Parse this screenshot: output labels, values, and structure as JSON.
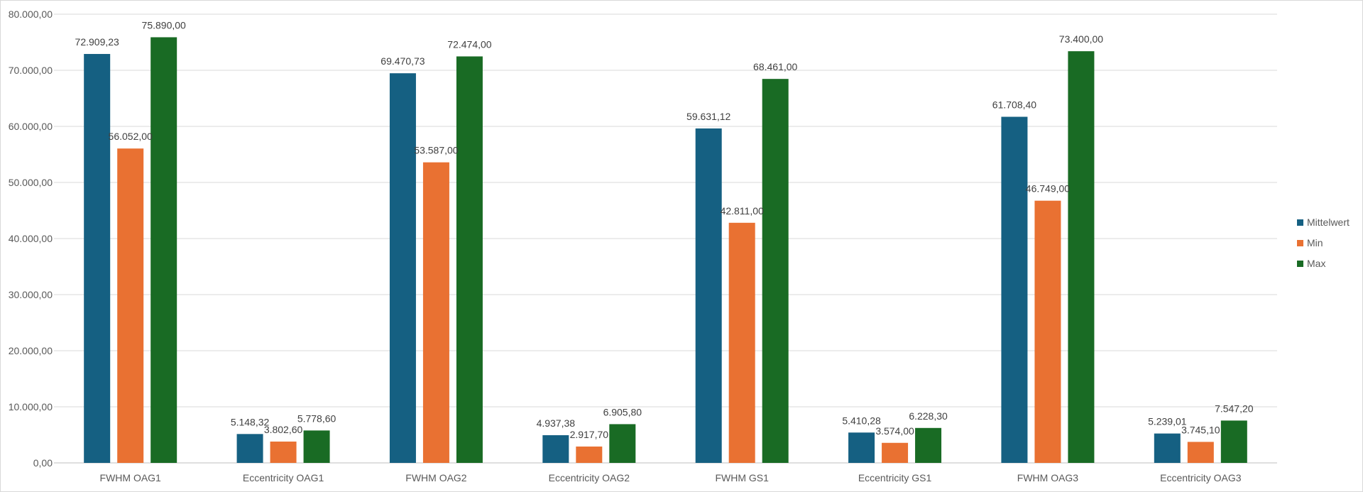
{
  "chart_data": {
    "type": "bar",
    "title": "",
    "xlabel": "",
    "ylabel": "",
    "ylim": [
      0,
      80000
    ],
    "y_ticks": [
      0,
      10000,
      20000,
      30000,
      40000,
      50000,
      60000,
      70000,
      80000
    ],
    "y_tick_labels": [
      "0,00",
      "10.000,00",
      "20.000,00",
      "30.000,00",
      "40.000,00",
      "50.000,00",
      "60.000,00",
      "70.000,00",
      "80.000,00"
    ],
    "grid": true,
    "legend_position": "right",
    "categories": [
      "FWHM OAG1",
      "Eccentricity  OAG1",
      "FWHM OAG2",
      "Eccentricity OAG2",
      "FWHM GS1",
      "Eccentricity GS1",
      "FWHM OAG3",
      "Eccentricity  OAG3"
    ],
    "series": [
      {
        "name": "Mittelwert",
        "color": "#156082",
        "values": [
          72909.23,
          5148.32,
          69470.73,
          4937.38,
          59631.12,
          5410.28,
          61708.4,
          5239.01
        ],
        "labels": [
          "72.909,23",
          "5.148,32",
          "69.470,73",
          "4.937,38",
          "59.631,12",
          "5.410,28",
          "61.708,40",
          "5.239,01"
        ]
      },
      {
        "name": "Min",
        "color": "#E97132",
        "values": [
          56052.0,
          3802.6,
          53587.0,
          2917.7,
          42811.0,
          3574.0,
          46749.0,
          3745.1
        ],
        "labels": [
          "56.052,00",
          "3.802,60",
          "53.587,00",
          "2.917,70",
          "42.811,00",
          "3.574,00",
          "46.749,00",
          "3.745,10"
        ]
      },
      {
        "name": "Max",
        "color": "#196B24",
        "values": [
          75890.0,
          5778.6,
          72474.0,
          6905.8,
          68461.0,
          6228.3,
          73400.0,
          7547.2
        ],
        "labels": [
          "75.890,00",
          "5.778,60",
          "72.474,00",
          "6.905,80",
          "68.461,00",
          "6.228,30",
          "73.400,00",
          "7.547,20"
        ]
      }
    ]
  }
}
